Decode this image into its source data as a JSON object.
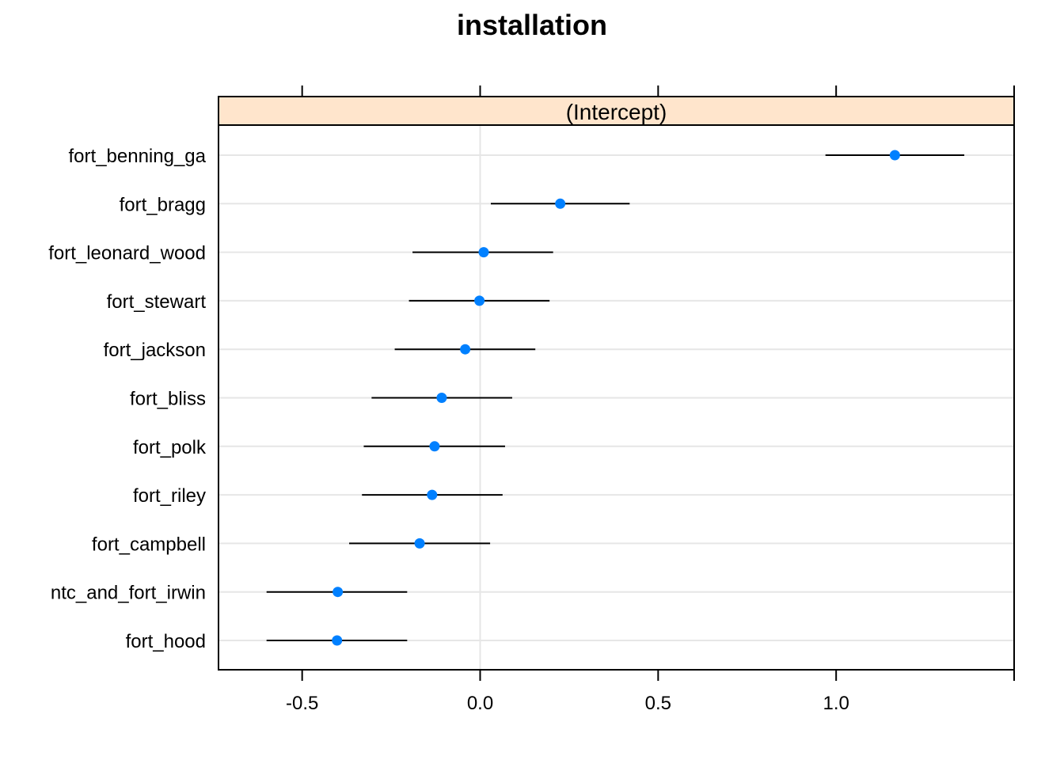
{
  "chart_data": {
    "type": "dotplot",
    "title": "installation",
    "panel_label": "(Intercept)",
    "categories": [
      "fort_benning_ga",
      "fort_bragg",
      "fort_leonard_wood",
      "fort_stewart",
      "fort_jackson",
      "fort_bliss",
      "fort_polk",
      "fort_riley",
      "fort_campbell",
      "ntc_and_fort_irwin",
      "fort_hood"
    ],
    "values": [
      1.165,
      0.225,
      0.01,
      -0.002,
      -0.042,
      -0.108,
      -0.128,
      -0.135,
      -0.17,
      -0.4,
      -0.402
    ],
    "lower": [
      0.97,
      0.03,
      -0.19,
      -0.2,
      -0.24,
      -0.305,
      -0.327,
      -0.332,
      -0.368,
      -0.6,
      -0.6
    ],
    "upper": [
      1.36,
      0.42,
      0.205,
      0.195,
      0.155,
      0.09,
      0.07,
      0.063,
      0.028,
      -0.205,
      -0.205
    ],
    "xlim": [
      -0.735,
      1.5
    ],
    "xticks": [
      -0.5,
      0.0,
      0.5,
      1.0,
      1.5
    ],
    "xtick_labels": [
      "-0.5",
      "0.0",
      "0.5",
      "1.0"
    ],
    "point_color": "#0080FF",
    "strip_color": "#FFE5CC",
    "grid_color": "#E6E6E6",
    "grid": true
  }
}
